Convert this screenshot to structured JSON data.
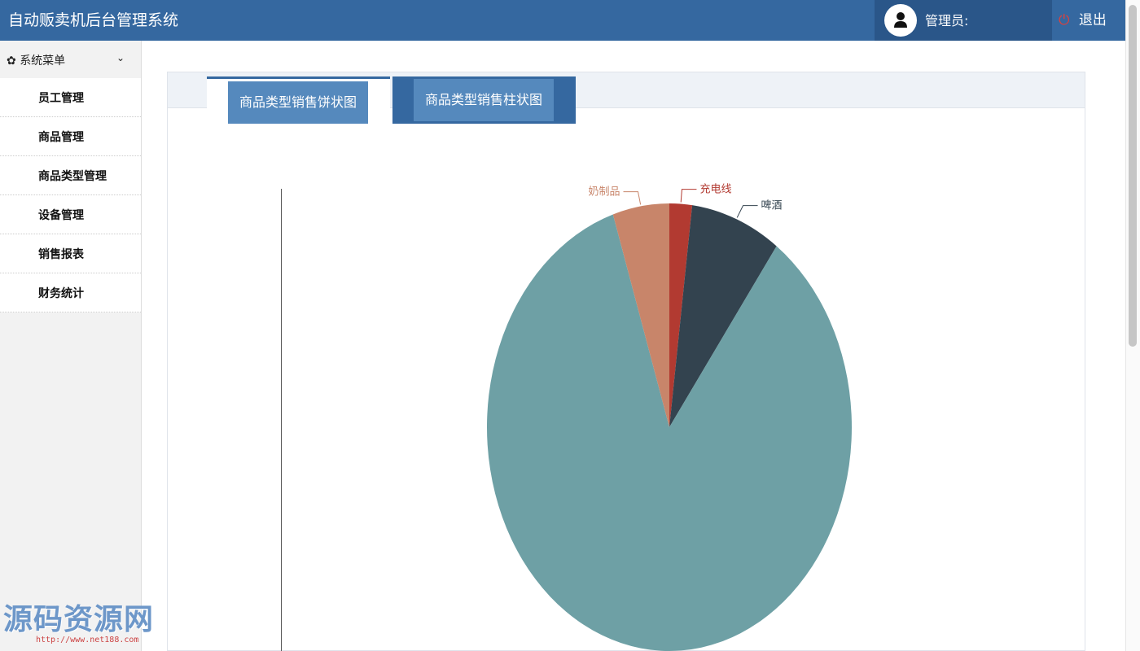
{
  "header": {
    "title": "自动贩卖机后台管理系统",
    "admin_label": "管理员:",
    "logout_label": "退出"
  },
  "sidebar": {
    "menu_title": "系统菜单",
    "items": [
      {
        "label": "员工管理"
      },
      {
        "label": "商品管理"
      },
      {
        "label": "商品类型管理"
      },
      {
        "label": "设备管理"
      },
      {
        "label": "销售报表"
      },
      {
        "label": "财务统计"
      }
    ]
  },
  "tabs": [
    {
      "label": "商品类型销售饼状图",
      "active": true
    },
    {
      "label": "商品类型销售柱状图",
      "active": false
    }
  ],
  "chart_data": {
    "type": "pie",
    "slices": [
      {
        "name": "充电线",
        "value": 2,
        "color": "#b23a31"
      },
      {
        "name": "啤酒",
        "value": 8,
        "color": "#33434f"
      },
      {
        "name": "",
        "value": 85,
        "color": "#6ea0a5"
      },
      {
        "name": "奶制品",
        "value": 5,
        "color": "#c8856a"
      }
    ]
  },
  "watermark": {
    "text": "源码资源网",
    "url": "http://www.net188.com"
  }
}
